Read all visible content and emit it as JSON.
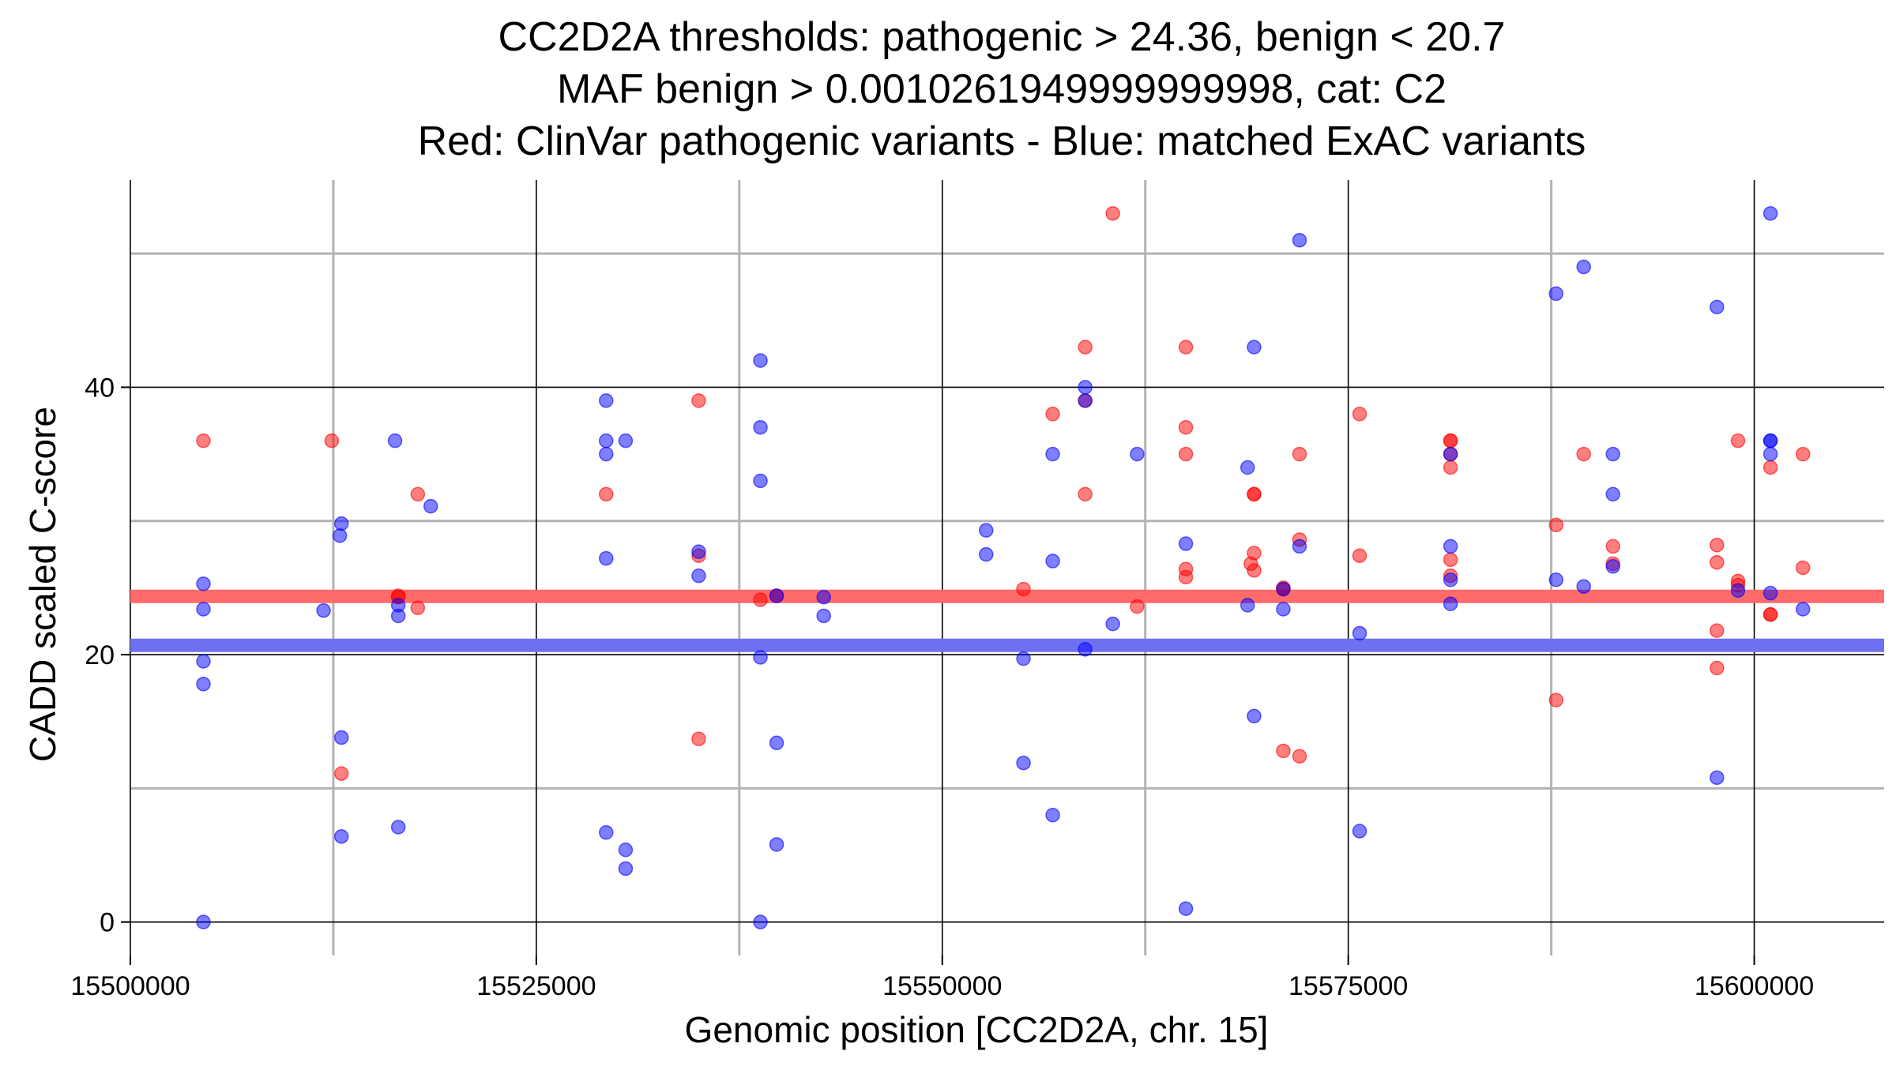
{
  "chart_data": {
    "type": "scatter",
    "title_lines": [
      "CC2D2A thresholds: pathogenic > 24.36, benign < 20.7",
      "MAF benign > 0.0010261949999999998, cat: C2",
      "Red: ClinVar pathogenic variants - Blue: matched ExAC variants"
    ],
    "xlabel": "Genomic position [CC2D2A, chr. 15]",
    "ylabel": "CADD scaled C-score",
    "xlim": [
      15500000,
      15608000
    ],
    "ylim": [
      -2.5,
      55.5
    ],
    "x_ticks": [
      15500000,
      15525000,
      15550000,
      15575000,
      15600000
    ],
    "x_tick_labels": [
      "15500000",
      "15525000",
      "15550000",
      "15575000",
      "15600000"
    ],
    "x_minor_ticks": [
      15512500,
      15537500,
      15562500,
      15587500
    ],
    "y_ticks": [
      0,
      20,
      40
    ],
    "y_tick_labels": [
      "0",
      "20",
      "40"
    ],
    "y_minor_ticks": [
      10,
      30,
      50
    ],
    "thresholds": [
      {
        "name": "pathogenic",
        "value": 24.36,
        "color": "#ff6a6a"
      },
      {
        "name": "benign",
        "value": 20.7,
        "color": "#6f6ff2"
      }
    ],
    "point_colors": {
      "pathogenic": "#ff0000",
      "benign": "#0000ff"
    },
    "series": [
      {
        "name": "ClinVar pathogenic variants",
        "key": "pathogenic",
        "points": [
          [
            15504500,
            36
          ],
          [
            15512400,
            36
          ],
          [
            15513000,
            11.1
          ],
          [
            15516500,
            24.4
          ],
          [
            15516500,
            24.3
          ],
          [
            15517700,
            32
          ],
          [
            15517700,
            23.5
          ],
          [
            15529300,
            32
          ],
          [
            15535000,
            39
          ],
          [
            15535000,
            27.4
          ],
          [
            15535000,
            13.7
          ],
          [
            15538800,
            24.1
          ],
          [
            15539800,
            24.4
          ],
          [
            15555000,
            24.9
          ],
          [
            15556800,
            38
          ],
          [
            15558800,
            43
          ],
          [
            15558800,
            39
          ],
          [
            15558800,
            32
          ],
          [
            15560500,
            53
          ],
          [
            15562000,
            23.6
          ],
          [
            15565000,
            43
          ],
          [
            15565000,
            37
          ],
          [
            15565000,
            35
          ],
          [
            15565000,
            26.4
          ],
          [
            15565000,
            25.8
          ],
          [
            15569000,
            26.8
          ],
          [
            15569200,
            32
          ],
          [
            15569200,
            27.6
          ],
          [
            15569200,
            26.3
          ],
          [
            15569200,
            32
          ],
          [
            15571000,
            25
          ],
          [
            15571000,
            24.9
          ],
          [
            15571000,
            12.8
          ],
          [
            15572000,
            35
          ],
          [
            15572000,
            28.6
          ],
          [
            15572000,
            12.4
          ],
          [
            15575700,
            38
          ],
          [
            15575700,
            27.4
          ],
          [
            15581300,
            36
          ],
          [
            15581300,
            36
          ],
          [
            15581300,
            35
          ],
          [
            15581300,
            34
          ],
          [
            15581300,
            27.1
          ],
          [
            15581300,
            25.9
          ],
          [
            15587800,
            29.7
          ],
          [
            15587800,
            16.6
          ],
          [
            15589500,
            35
          ],
          [
            15591300,
            28.1
          ],
          [
            15591300,
            26.8
          ],
          [
            15597700,
            28.2
          ],
          [
            15597700,
            26.9
          ],
          [
            15597700,
            21.8
          ],
          [
            15597700,
            19
          ],
          [
            15599000,
            36
          ],
          [
            15599000,
            25.5
          ],
          [
            15599000,
            25.2
          ],
          [
            15601000,
            34
          ],
          [
            15601000,
            23
          ],
          [
            15601000,
            23
          ],
          [
            15603000,
            35
          ],
          [
            15603000,
            26.5
          ]
        ]
      },
      {
        "name": "matched ExAC variants",
        "key": "benign",
        "points": [
          [
            15504500,
            25.3
          ],
          [
            15504500,
            23.4
          ],
          [
            15504500,
            19.5
          ],
          [
            15504500,
            17.8
          ],
          [
            15504500,
            0
          ],
          [
            15511900,
            23.3
          ],
          [
            15513000,
            29.8
          ],
          [
            15512900,
            28.9
          ],
          [
            15513000,
            13.8
          ],
          [
            15513000,
            6.4
          ],
          [
            15516300,
            36
          ],
          [
            15516500,
            23.7
          ],
          [
            15516500,
            22.9
          ],
          [
            15516500,
            7.1
          ],
          [
            15518500,
            31.1
          ],
          [
            15529300,
            39
          ],
          [
            15529300,
            36
          ],
          [
            15529300,
            35
          ],
          [
            15529300,
            27.2
          ],
          [
            15529300,
            6.7
          ],
          [
            15530500,
            36
          ],
          [
            15530500,
            5.4
          ],
          [
            15530500,
            4.0
          ],
          [
            15535000,
            27.7
          ],
          [
            15535000,
            25.9
          ],
          [
            15538800,
            42
          ],
          [
            15538800,
            37
          ],
          [
            15538800,
            33
          ],
          [
            15538800,
            19.8
          ],
          [
            15538800,
            0
          ],
          [
            15539800,
            24.4
          ],
          [
            15539800,
            13.4
          ],
          [
            15539800,
            5.8
          ],
          [
            15542700,
            24.3
          ],
          [
            15542700,
            22.9
          ],
          [
            15552700,
            29.3
          ],
          [
            15552700,
            27.5
          ],
          [
            15555000,
            19.7
          ],
          [
            15555000,
            11.9
          ],
          [
            15556800,
            35
          ],
          [
            15556800,
            27
          ],
          [
            15556800,
            8
          ],
          [
            15558800,
            40
          ],
          [
            15558800,
            39
          ],
          [
            15558800,
            20.4
          ],
          [
            15560500,
            22.3
          ],
          [
            15562000,
            35
          ],
          [
            15565000,
            28.3
          ],
          [
            15565000,
            1
          ],
          [
            15568800,
            34
          ],
          [
            15568800,
            23.7
          ],
          [
            15569200,
            43
          ],
          [
            15569200,
            15.4
          ],
          [
            15571000,
            24.9
          ],
          [
            15571000,
            23.4
          ],
          [
            15572000,
            51
          ],
          [
            15572000,
            28.1
          ],
          [
            15575700,
            21.6
          ],
          [
            15575700,
            6.8
          ],
          [
            15581300,
            35
          ],
          [
            15581300,
            28.1
          ],
          [
            15581300,
            25.6
          ],
          [
            15581300,
            23.8
          ],
          [
            15587800,
            47
          ],
          [
            15587800,
            25.6
          ],
          [
            15589500,
            49
          ],
          [
            15589500,
            25.1
          ],
          [
            15591300,
            35
          ],
          [
            15591300,
            32
          ],
          [
            15591300,
            26.6
          ],
          [
            15597700,
            46
          ],
          [
            15597700,
            10.8
          ],
          [
            15599000,
            24.8
          ],
          [
            15601000,
            53
          ],
          [
            15601000,
            36
          ],
          [
            15601000,
            36
          ],
          [
            15601000,
            35
          ],
          [
            15601000,
            24.6
          ],
          [
            15603000,
            23.4
          ]
        ]
      }
    ]
  }
}
